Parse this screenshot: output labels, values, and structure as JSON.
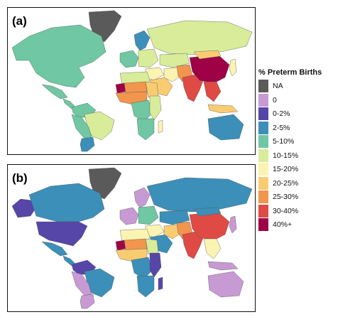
{
  "panels": [
    {
      "label": "(a)"
    },
    {
      "label": "(b)"
    }
  ],
  "legend": {
    "title": "% Preterm Births",
    "items": [
      {
        "label": "NA",
        "color": "#5a5a5a"
      },
      {
        "label": "0",
        "color": "#c89ad4"
      },
      {
        "label": "0-2%",
        "color": "#5646a8"
      },
      {
        "label": "2-5%",
        "color": "#3b8fb8"
      },
      {
        "label": "5-10%",
        "color": "#6fc7a3"
      },
      {
        "label": "10-15%",
        "color": "#d8ec9a"
      },
      {
        "label": "15-20%",
        "color": "#fbf3b2"
      },
      {
        "label": "20-25%",
        "color": "#f9cc72"
      },
      {
        "label": "25-30%",
        "color": "#f2954d"
      },
      {
        "label": "30-40%",
        "color": "#df4a45"
      },
      {
        "label": "40%+",
        "color": "#9e0145"
      }
    ]
  },
  "map_a": {
    "greenland": "NA",
    "north_america": "5-10%",
    "mexico": "5-10%",
    "central_america": "5-10%",
    "colombia_venezuela": "5-10%",
    "brazil": "10-15%",
    "peru_bolivia": "5-10%",
    "argentina_chile": "2-5%",
    "western_europe": "5-10%",
    "scandinavia": "2-5%",
    "eastern_europe": "10-15%",
    "russia": "10-15%",
    "kazakhstan": "10-15%",
    "middle_east": "15-20%",
    "arabia": "20-25%",
    "iran": "15-20%",
    "afghanistan_pakistan": "25-30%",
    "india": "30-40%",
    "china": "40%+",
    "mongolia": "20-25%",
    "southeast_asia": "30-40%",
    "indonesia": "20-25%",
    "japan": "15-20%",
    "north_africa": "10-15%",
    "mauritania": "40%+",
    "mali_niger": "25-30%",
    "sudan": "20-25%",
    "west_africa": "25-30%",
    "central_africa": "5-10%",
    "east_africa": "10-15%",
    "southern_africa": "5-10%",
    "madagascar": "15-20%",
    "australia": "2-5%"
  },
  "map_b": {
    "greenland": "NA",
    "alaska": "0-2%",
    "canada": "2-5%",
    "usa": "0-2%",
    "mexico": "2-5%",
    "central_america": "2-5%",
    "colombia_venezuela": "0-2%",
    "brazil": "2-5%",
    "peru_bolivia": "0",
    "argentina_chile": "0",
    "western_europe": "0",
    "scandinavia": "0",
    "eastern_europe": "5-10%",
    "russia": "2-5%",
    "kazakhstan": "2-5%",
    "middle_east": "15-20%",
    "arabia": "2-5%",
    "iran": "20-25%",
    "afghanistan_pakistan": "25-30%",
    "india": "30-40%",
    "china": "30-40%",
    "mongolia": "2-5%",
    "southeast_asia": "15-20%",
    "indonesia": "0",
    "japan": "0",
    "north_africa": "15-20%",
    "mauritania": "40%+",
    "mali_niger": "25-30%",
    "sudan": "10-15%",
    "west_africa": "20-25%",
    "central_africa": "2-5%",
    "east_africa": "0-2%",
    "southern_africa": "2-5%",
    "madagascar": "0-2%",
    "australia": "0"
  }
}
